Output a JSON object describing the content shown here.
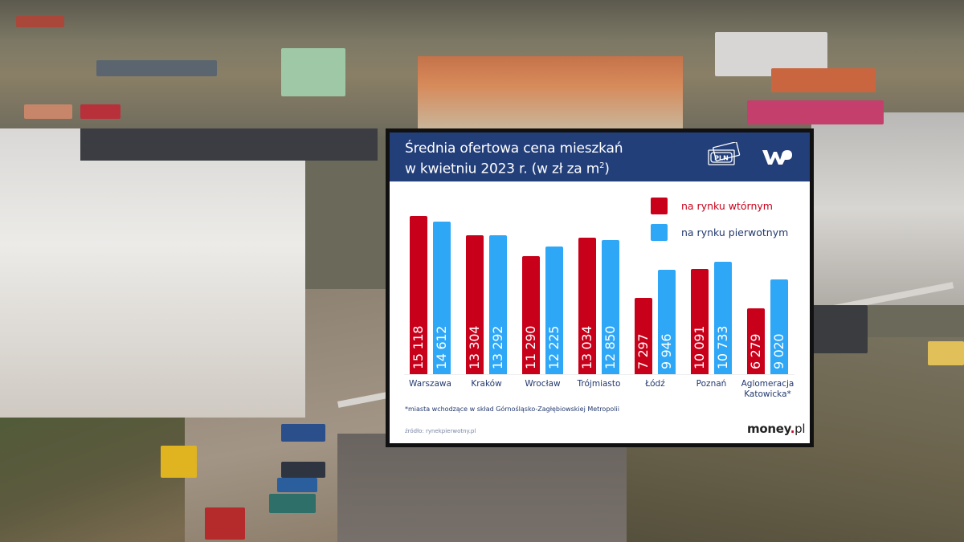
{
  "chart_data": {
    "type": "bar",
    "title": "Średnia ofertowa cena mieszkań w kwietniu 2023 r. (w zł za m²)",
    "xlabel": "",
    "ylabel": "",
    "unit": "zł za m²",
    "grid": false,
    "legend_position": "top-right",
    "categories": [
      "Warszawa",
      "Kraków",
      "Wrocław",
      "Trójmiasto",
      "Łódź",
      "Poznań",
      "Aglomeracja Katowicka*"
    ],
    "series": [
      {
        "name": "na rynku wtórnym",
        "color": "#c8001a",
        "values": [
          15118,
          13304,
          11290,
          13034,
          7297,
          10091,
          6279
        ]
      },
      {
        "name": "na rynku pierwotnym",
        "color": "#2ea7f7",
        "values": [
          14612,
          13292,
          12225,
          12850,
          9946,
          10733,
          9020
        ]
      }
    ],
    "value_labels": {
      "secondary": [
        "15 118",
        "13 304",
        "11 290",
        "13 034",
        "7 297",
        "10 091",
        "6 279"
      ],
      "primary": [
        "14 612",
        "13 292",
        "12 225",
        "12 850",
        "9 946",
        "10 733",
        "9 020"
      ]
    },
    "category_labels": [
      [
        "Warszawa"
      ],
      [
        "Kraków"
      ],
      [
        "Wrocław"
      ],
      [
        "Trójmiasto"
      ],
      [
        "Łódź"
      ],
      [
        "Poznań"
      ],
      [
        "Aglomeracja",
        "Katowicka*"
      ]
    ],
    "annotations": [
      "*miasta wchodzące w skład Górnośląsko-Zagłębiowskiej Metropolii"
    ]
  },
  "header": {
    "title_line1": "Średnia ofertowa cena mieszkań",
    "title_line2": "w kwietniu 2023 r. (w zł za m",
    "title_sup": "2",
    "title_close": ")",
    "pln_icon_text": "PLN",
    "brand_logo": "WP"
  },
  "legend": {
    "items": [
      {
        "label": "na rynku wtórnym",
        "color": "#c8001a"
      },
      {
        "label": "na rynku pierwotnym",
        "color": "#2ea7f7"
      }
    ]
  },
  "footer": {
    "footnote": "*miasta wchodzące w skład Górnośląsko-Zagłębiowskiej Metropolii",
    "source": "źródło: rynekpierwotny.pl",
    "logo_main": "money",
    "logo_dot": ".",
    "logo_suffix": "pl"
  },
  "colors": {
    "header_bg": "#233f7a",
    "secondary_market": "#c8001a",
    "primary_market": "#2ea7f7",
    "label_text": "#23396e"
  }
}
